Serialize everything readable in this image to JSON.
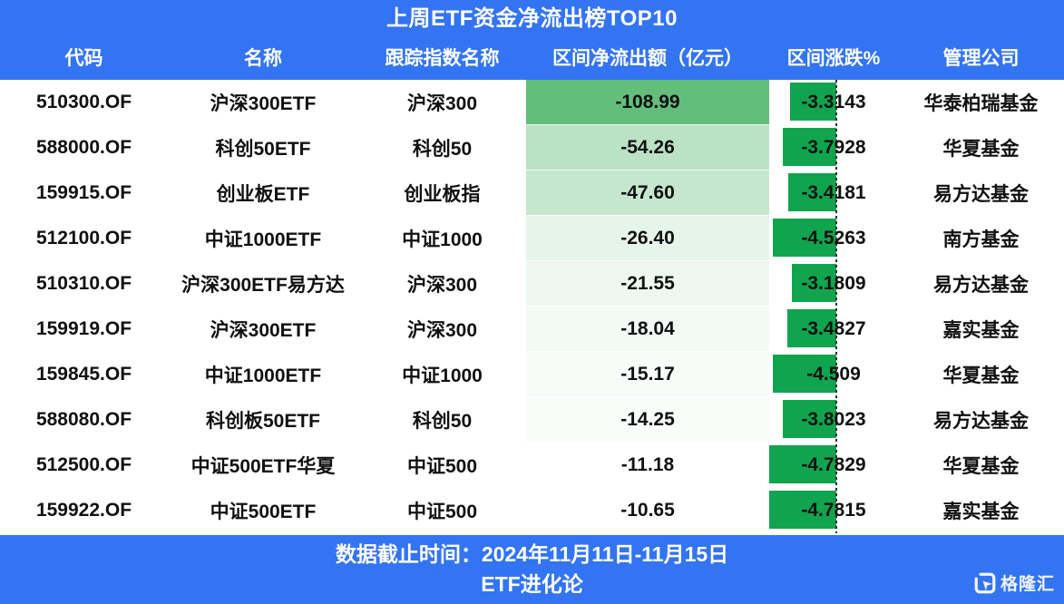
{
  "title": "上周ETF资金净流出榜TOP10",
  "columns": [
    "代码",
    "名称",
    "跟踪指数名称",
    "区间净流出额（亿元）",
    "区间涨跌%",
    "管理公司"
  ],
  "rows": [
    {
      "code": "510300.OF",
      "name": "沪深300ETF",
      "index": "沪深300",
      "outflow": "-108.99",
      "change": "-3.3143",
      "company": "华泰柏瑞基金"
    },
    {
      "code": "588000.OF",
      "name": "科创50ETF",
      "index": "科创50",
      "outflow": "-54.26",
      "change": "-3.7928",
      "company": "华夏基金"
    },
    {
      "code": "159915.OF",
      "name": "创业板ETF",
      "index": "创业板指",
      "outflow": "-47.60",
      "change": "-3.4181",
      "company": "易方达基金"
    },
    {
      "code": "512100.OF",
      "name": "中证1000ETF",
      "index": "中证1000",
      "outflow": "-26.40",
      "change": "-4.5263",
      "company": "南方基金"
    },
    {
      "code": "510310.OF",
      "name": "沪深300ETF易方达",
      "index": "沪深300",
      "outflow": "-21.55",
      "change": "-3.1809",
      "company": "易方达基金"
    },
    {
      "code": "159919.OF",
      "name": "沪深300ETF",
      "index": "沪深300",
      "outflow": "-18.04",
      "change": "-3.4827",
      "company": "嘉实基金"
    },
    {
      "code": "159845.OF",
      "name": "中证1000ETF",
      "index": "中证1000",
      "outflow": "-15.17",
      "change": "-4.509",
      "company": "华夏基金"
    },
    {
      "code": "588080.OF",
      "name": "科创板50ETF",
      "index": "科创50",
      "outflow": "-14.25",
      "change": "-3.8023",
      "company": "易方达基金"
    },
    {
      "code": "512500.OF",
      "name": "中证500ETF华夏",
      "index": "中证500",
      "outflow": "-11.18",
      "change": "-4.7829",
      "company": "华夏基金"
    },
    {
      "code": "159922.OF",
      "name": "中证500ETF",
      "index": "中证500",
      "outflow": "-10.65",
      "change": "-4.7815",
      "company": "嘉实基金"
    }
  ],
  "footer": {
    "line1": "数据截止时间：2024年11月11日-11月15日",
    "line2": "ETF进化论",
    "brand": "格隆汇"
  },
  "colors": {
    "header_blue": "#3374f3",
    "scale_green_max": "#63be7b",
    "scale_white_min": "#ffffff",
    "bar_green": "#10a44f",
    "axis_dash": "#2f2f2f",
    "body_text": "#111111"
  },
  "chart_data": {
    "type": "table",
    "title": "上周ETF资金净流出榜TOP10",
    "columns": [
      "代码",
      "名称",
      "跟踪指数名称",
      "区间净流出额（亿元）",
      "区间涨跌%",
      "管理公司"
    ],
    "rows": [
      [
        "510300.OF",
        "沪深300ETF",
        "沪深300",
        -108.99,
        -3.3143,
        "华泰柏瑞基金"
      ],
      [
        "588000.OF",
        "科创50ETF",
        "科创50",
        -54.26,
        -3.7928,
        "华夏基金"
      ],
      [
        "159915.OF",
        "创业板ETF",
        "创业板指",
        -47.6,
        -3.4181,
        "易方达基金"
      ],
      [
        "512100.OF",
        "中证1000ETF",
        "中证1000",
        -26.4,
        -4.5263,
        "南方基金"
      ],
      [
        "510310.OF",
        "沪深300ETF易方达",
        "沪深300",
        -21.55,
        -3.1809,
        "易方达基金"
      ],
      [
        "159919.OF",
        "沪深300ETF",
        "沪深300",
        -18.04,
        -3.4827,
        "嘉实基金"
      ],
      [
        "159845.OF",
        "中证1000ETF",
        "中证1000",
        -15.17,
        -4.509,
        "华夏基金"
      ],
      [
        "588080.OF",
        "科创板50ETF",
        "科创50",
        -14.25,
        -3.8023,
        "易方达基金"
      ],
      [
        "512500.OF",
        "中证500ETF华夏",
        "中证500",
        -11.18,
        -4.7829,
        "华夏基金"
      ],
      [
        "159922.OF",
        "中证500ETF",
        "中证500",
        -10.65,
        -4.7815,
        "嘉实基金"
      ]
    ],
    "visual_encodings": {
      "outflow_column": "2-color scale on 区间净流出额: #63be7b at -108.99 fading to white at -10.65",
      "change_column": "green negative data bars (#10a44f) extending left from dashed axis, longest bar = -4.7829"
    },
    "period": "2024年11月11日-11月15日"
  }
}
